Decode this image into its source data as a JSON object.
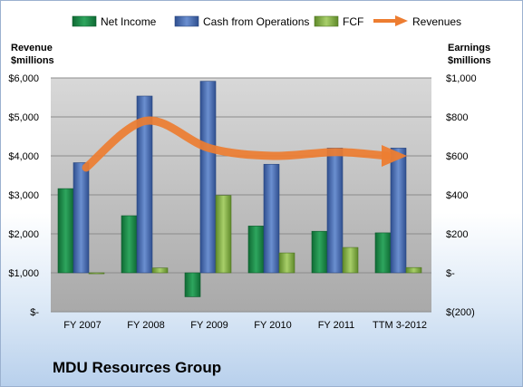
{
  "chart_data": {
    "type": "bar",
    "title": "MDU Resources Group",
    "categories": [
      "FY 2007",
      "FY 2008",
      "FY 2009",
      "FY 2010",
      "FY 2011",
      "TTM 3-2012"
    ],
    "series": [
      {
        "name": "Net Income",
        "axis": "right",
        "color": "#1e8a4c",
        "values": [
          432,
          293,
          -123,
          240,
          213,
          205
        ]
      },
      {
        "name": "Cash from Operations",
        "axis": "right",
        "color": "#4a6fb3",
        "values": [
          565,
          907,
          983,
          557,
          640,
          640
        ]
      },
      {
        "name": "FCF",
        "axis": "right",
        "color": "#8fb84e",
        "values": [
          -5,
          25,
          397,
          102,
          130,
          27
        ]
      },
      {
        "name": "Revenues",
        "axis": "left",
        "type": "line",
        "color": "#ed7d31",
        "values": [
          3700,
          4900,
          4200,
          4000,
          4100,
          4000
        ]
      }
    ],
    "left_axis": {
      "label": "Revenue $millions",
      "ylim": [
        0,
        6000
      ],
      "ticks": [
        "$-",
        "$1,000",
        "$2,000",
        "$3,000",
        "$4,000",
        "$5,000",
        "$6,000"
      ]
    },
    "right_axis": {
      "label": "Earnings $millions",
      "ylim": [
        -200,
        1000
      ],
      "ticks": [
        "$(200)",
        "$-",
        "$200",
        "$400",
        "$600",
        "$800",
        "$1,000"
      ]
    },
    "legend_position": "top",
    "grid": true
  },
  "legend": {
    "net_income": "Net Income",
    "cfo": "Cash from Operations",
    "fcf": "FCF",
    "revenues": "Revenues"
  },
  "axis_titles": {
    "left_line1": "Revenue",
    "left_line2": "$millions",
    "right_line1": "Earnings",
    "right_line2": "$millions"
  },
  "company": "MDU Resources Group"
}
